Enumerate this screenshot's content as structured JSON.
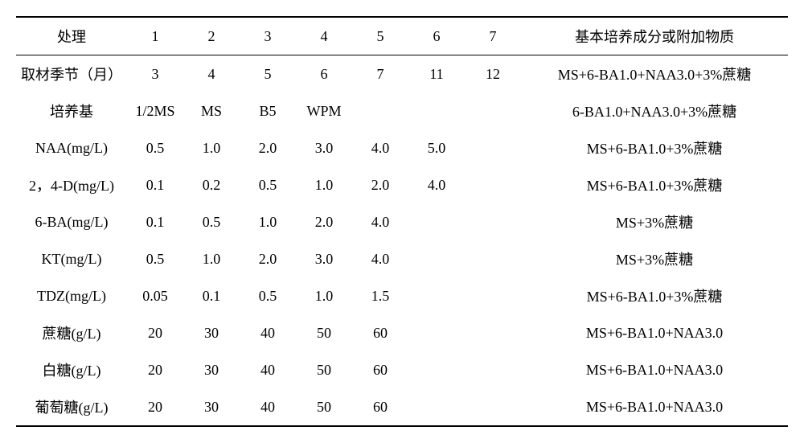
{
  "header": {
    "label": "处理",
    "cols": [
      "1",
      "2",
      "3",
      "4",
      "5",
      "6",
      "7"
    ],
    "last": "基本培养成分或附加物质"
  },
  "rows": [
    {
      "label": "取材季节（月）",
      "cells": [
        "3",
        "4",
        "5",
        "6",
        "7",
        "11",
        "12"
      ],
      "last": "MS+6-BA1.0+NAA3.0+3%蔗糖"
    },
    {
      "label": "培养基",
      "cells": [
        "1/2MS",
        "MS",
        "B5",
        "WPM",
        "",
        "",
        ""
      ],
      "last": "6-BA1.0+NAA3.0+3%蔗糖"
    },
    {
      "label": "NAA(mg/L)",
      "cells": [
        "0.5",
        "1.0",
        "2.0",
        "3.0",
        "4.0",
        "5.0",
        ""
      ],
      "last": "MS+6-BA1.0+3%蔗糖"
    },
    {
      "label": "2，4-D(mg/L)",
      "cells": [
        "0.1",
        "0.2",
        "0.5",
        "1.0",
        "2.0",
        "4.0",
        ""
      ],
      "last": "MS+6-BA1.0+3%蔗糖"
    },
    {
      "label": "6-BA(mg/L)",
      "cells": [
        "0.1",
        "0.5",
        "1.0",
        "2.0",
        "4.0",
        "",
        ""
      ],
      "last": "MS+3%蔗糖"
    },
    {
      "label": "KT(mg/L)",
      "cells": [
        "0.5",
        "1.0",
        "2.0",
        "3.0",
        "4.0",
        "",
        ""
      ],
      "last": "MS+3%蔗糖"
    },
    {
      "label": "TDZ(mg/L)",
      "cells": [
        "0.05",
        "0.1",
        "0.5",
        "1.0",
        "1.5",
        "",
        ""
      ],
      "last": "MS+6-BA1.0+3%蔗糖"
    },
    {
      "label": "蔗糖(g/L)",
      "cells": [
        "20",
        "30",
        "40",
        "50",
        "60",
        "",
        ""
      ],
      "last": "MS+6-BA1.0+NAA3.0"
    },
    {
      "label": "白糖(g/L)",
      "cells": [
        "20",
        "30",
        "40",
        "50",
        "60",
        "",
        ""
      ],
      "last": "MS+6-BA1.0+NAA3.0"
    },
    {
      "label": "葡萄糖(g/L)",
      "cells": [
        "20",
        "30",
        "40",
        "50",
        "60",
        "",
        ""
      ],
      "last": "MS+6-BA1.0+NAA3.0"
    }
  ]
}
